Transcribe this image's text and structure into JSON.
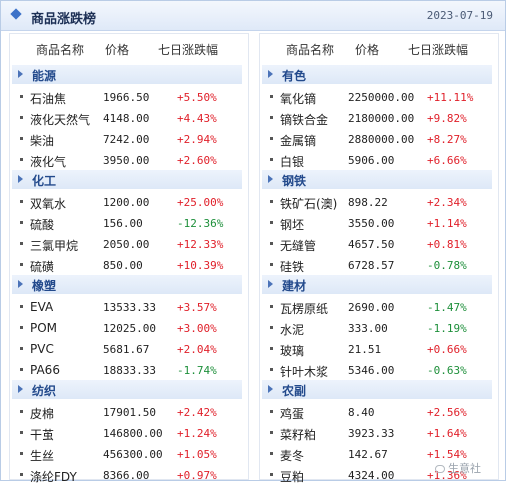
{
  "header": {
    "title": "商品涨跌榜",
    "date": "2023-07-19"
  },
  "columns": {
    "name": "商品名称",
    "price": "价格",
    "change": "七日涨跌幅"
  },
  "left": [
    {
      "category": "能源",
      "items": [
        {
          "name": "石油焦",
          "price": "1966.50",
          "change": "+5.50%",
          "dir": "up"
        },
        {
          "name": "液化天然气",
          "price": "4148.00",
          "change": "+4.43%",
          "dir": "up"
        },
        {
          "name": "柴油",
          "price": "7242.00",
          "change": "+2.94%",
          "dir": "up"
        },
        {
          "name": "液化气",
          "price": "3950.00",
          "change": "+2.60%",
          "dir": "up"
        }
      ]
    },
    {
      "category": "化工",
      "items": [
        {
          "name": "双氧水",
          "price": "1200.00",
          "change": "+25.00%",
          "dir": "up"
        },
        {
          "name": "硫酸",
          "price": "156.00",
          "change": "-12.36%",
          "dir": "down"
        },
        {
          "name": "三氯甲烷",
          "price": "2050.00",
          "change": "+12.33%",
          "dir": "up"
        },
        {
          "name": "硫磺",
          "price": "850.00",
          "change": "+10.39%",
          "dir": "up"
        }
      ]
    },
    {
      "category": "橡塑",
      "items": [
        {
          "name": "EVA",
          "price": "13533.33",
          "change": "+3.57%",
          "dir": "up"
        },
        {
          "name": "POM",
          "price": "12025.00",
          "change": "+3.00%",
          "dir": "up"
        },
        {
          "name": "PVC",
          "price": "5681.67",
          "change": "+2.04%",
          "dir": "up"
        },
        {
          "name": "PA66",
          "price": "18833.33",
          "change": "-1.74%",
          "dir": "down"
        }
      ]
    },
    {
      "category": "纺织",
      "items": [
        {
          "name": "皮棉",
          "price": "17901.50",
          "change": "+2.42%",
          "dir": "up"
        },
        {
          "name": "干茧",
          "price": "146800.00",
          "change": "+1.24%",
          "dir": "up"
        },
        {
          "name": "生丝",
          "price": "456300.00",
          "change": "+1.05%",
          "dir": "up"
        },
        {
          "name": "涤纶FDY",
          "price": "8366.00",
          "change": "+0.97%",
          "dir": "up"
        }
      ]
    }
  ],
  "right": [
    {
      "category": "有色",
      "items": [
        {
          "name": "氧化镝",
          "price": "2250000.00",
          "change": "+11.11%",
          "dir": "up"
        },
        {
          "name": "镝铁合金",
          "price": "2180000.00",
          "change": "+9.82%",
          "dir": "up"
        },
        {
          "name": "金属镝",
          "price": "2880000.00",
          "change": "+8.27%",
          "dir": "up"
        },
        {
          "name": "白银",
          "price": "5906.00",
          "change": "+6.66%",
          "dir": "up"
        }
      ]
    },
    {
      "category": "钢铁",
      "items": [
        {
          "name": "铁矿石(澳)",
          "price": "898.22",
          "change": "+2.34%",
          "dir": "up"
        },
        {
          "name": "钢坯",
          "price": "3550.00",
          "change": "+1.14%",
          "dir": "up"
        },
        {
          "name": "无缝管",
          "price": "4657.50",
          "change": "+0.81%",
          "dir": "up"
        },
        {
          "name": "硅铁",
          "price": "6728.57",
          "change": "-0.78%",
          "dir": "down"
        }
      ]
    },
    {
      "category": "建材",
      "items": [
        {
          "name": "瓦楞原纸",
          "price": "2690.00",
          "change": "-1.47%",
          "dir": "down"
        },
        {
          "name": "水泥",
          "price": "333.00",
          "change": "-1.19%",
          "dir": "down"
        },
        {
          "name": "玻璃",
          "price": "21.51",
          "change": "+0.66%",
          "dir": "up"
        },
        {
          "name": "针叶木浆",
          "price": "5346.00",
          "change": "-0.63%",
          "dir": "down"
        }
      ]
    },
    {
      "category": "农副",
      "items": [
        {
          "name": "鸡蛋",
          "price": "8.40",
          "change": "+2.56%",
          "dir": "up"
        },
        {
          "name": "菜籽粕",
          "price": "3923.33",
          "change": "+1.64%",
          "dir": "up"
        },
        {
          "name": "麦冬",
          "price": "142.67",
          "change": "+1.54%",
          "dir": "up"
        },
        {
          "name": "豆粕",
          "price": "4324.00",
          "change": "+1.36%",
          "dir": "up"
        }
      ]
    }
  ],
  "watermark": "生意社",
  "colors": {
    "up": "#e0202a",
    "down": "#1d8f3a",
    "category": "#234a8c"
  }
}
